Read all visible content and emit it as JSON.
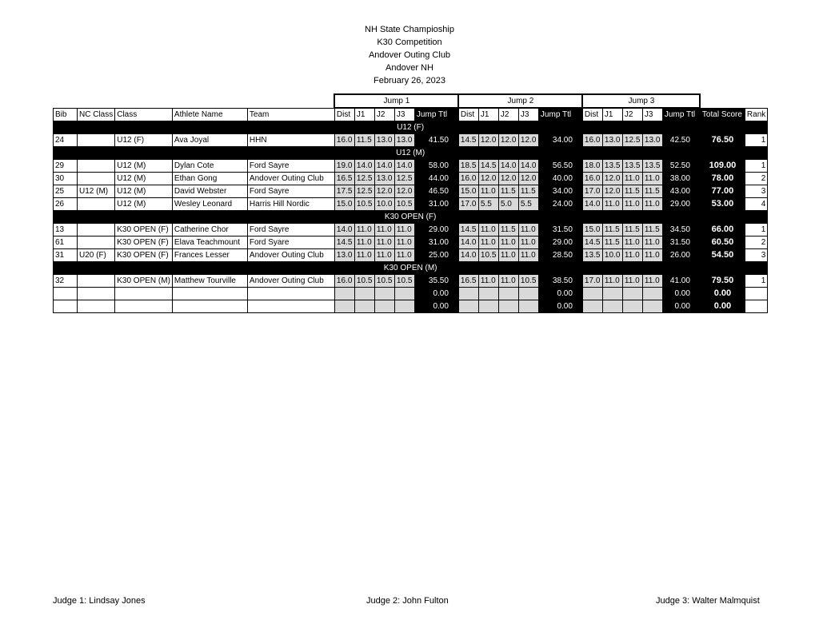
{
  "title": [
    "NH State Champioship",
    "K30 Competition",
    "Andover Outing Club",
    "Andover NH",
    "February 26, 2023"
  ],
  "jumps": [
    "Jump 1",
    "Jump 2",
    "Jump 3"
  ],
  "headers": {
    "bib": "Bib",
    "nc_class": "NC Class",
    "class": "Class",
    "athlete": "Athlete Name",
    "team": "Team",
    "dist": "Dist",
    "j1": "J1",
    "j2": "J2",
    "j3": "J3",
    "jump_ttl": "Jump Ttl",
    "total": "Total Score",
    "rank": "Rank"
  },
  "sections": [
    {
      "label": "U12 (F)",
      "rows": [
        {
          "bib": "24",
          "nc": "",
          "cls": "U12 (F)",
          "name": "Ava Joyal",
          "team": "HHN",
          "jumps": [
            [
              "16.0",
              "11.5",
              "13.0",
              "13.0",
              "41.50"
            ],
            [
              "14.5",
              "12.0",
              "12.0",
              "12.0",
              "34.00"
            ],
            [
              "16.0",
              "13.0",
              "12.5",
              "13.0",
              "42.50"
            ]
          ],
          "total": "76.50",
          "rank": "1"
        }
      ]
    },
    {
      "label": "U12 (M)",
      "rows": [
        {
          "bib": "29",
          "nc": "",
          "cls": "U12 (M)",
          "name": "Dylan Cote",
          "team": "Ford Sayre",
          "jumps": [
            [
              "19.0",
              "14.0",
              "14.0",
              "14.0",
              "58.00"
            ],
            [
              "18.5",
              "14.5",
              "14.0",
              "14.0",
              "56.50"
            ],
            [
              "18.0",
              "13.5",
              "13.5",
              "13.5",
              "52.50"
            ]
          ],
          "total": "109.00",
          "rank": "1"
        },
        {
          "bib": "30",
          "nc": "",
          "cls": "U12 (M)",
          "name": "Ethan Gong",
          "team": "Andover Outing Club",
          "jumps": [
            [
              "16.5",
              "12.5",
              "13.0",
              "12.5",
              "44.00"
            ],
            [
              "16.0",
              "12.0",
              "12.0",
              "12.0",
              "40.00"
            ],
            [
              "16.0",
              "12.0",
              "11.0",
              "11.0",
              "38.00"
            ]
          ],
          "total": "78.00",
          "rank": "2"
        },
        {
          "bib": "25",
          "nc": "U12 (M)",
          "cls": "U12 (M)",
          "name": "David Webster",
          "team": "Ford Sayre",
          "jumps": [
            [
              "17.5",
              "12.5",
              "12.0",
              "12.0",
              "46.50"
            ],
            [
              "15.0",
              "11.0",
              "11.5",
              "11.5",
              "34.00"
            ],
            [
              "17.0",
              "12.0",
              "11.5",
              "11.5",
              "43.00"
            ]
          ],
          "total": "77.00",
          "rank": "3"
        },
        {
          "bib": "26",
          "nc": "",
          "cls": "U12 (M)",
          "name": "Wesley Leonard",
          "team": "Harris Hill Nordic",
          "jumps": [
            [
              "15.0",
              "10.5",
              "10.0",
              "10.5",
              "31.00"
            ],
            [
              "17.0",
              "5.5",
              "5.0",
              "5.5",
              "24.00"
            ],
            [
              "14.0",
              "11.0",
              "11.0",
              "11.0",
              "29.00"
            ]
          ],
          "total": "53.00",
          "rank": "4"
        }
      ]
    },
    {
      "label": "K30 OPEN (F)",
      "rows": [
        {
          "bib": "13",
          "nc": "",
          "cls": "K30 OPEN (F)",
          "name": "Catherine  Chor",
          "team": "Ford Sayre",
          "jumps": [
            [
              "14.0",
              "11.0",
              "11.0",
              "11.0",
              "29.00"
            ],
            [
              "14.5",
              "11.0",
              "11.5",
              "11.0",
              "31.50"
            ],
            [
              "15.0",
              "11.5",
              "11.5",
              "11.5",
              "34.50"
            ]
          ],
          "total": "66.00",
          "rank": "1"
        },
        {
          "bib": "61",
          "nc": "",
          "cls": "K30 OPEN (F)",
          "name": "Elava Teachmount",
          "team": "Ford Syare",
          "jumps": [
            [
              "14.5",
              "11.0",
              "11.0",
              "11.0",
              "31.00"
            ],
            [
              "14.0",
              "11.0",
              "11.0",
              "11.0",
              "29.00"
            ],
            [
              "14.5",
              "11.5",
              "11.0",
              "11.0",
              "31.50"
            ]
          ],
          "total": "60.50",
          "rank": "2"
        },
        {
          "bib": "31",
          "nc": "U20 (F)",
          "cls": "K30 OPEN (F)",
          "name": "Frances Lesser",
          "team": "Andover Outing Club",
          "jumps": [
            [
              "13.0",
              "11.0",
              "11.0",
              "11.0",
              "25.00"
            ],
            [
              "14.0",
              "10.5",
              "11.0",
              "11.0",
              "28.50"
            ],
            [
              "13.5",
              "10.0",
              "11.0",
              "11.0",
              "26.00"
            ]
          ],
          "total": "54.50",
          "rank": "3"
        }
      ]
    },
    {
      "label": "K30 OPEN (M)",
      "rows": [
        {
          "bib": "32",
          "nc": "",
          "cls": "K30 OPEN (M)",
          "name": "Matthew Tourville",
          "team": "Andover Outing Club",
          "jumps": [
            [
              "16.0",
              "10.5",
              "10.5",
              "10.5",
              "35.50"
            ],
            [
              "16.5",
              "11.0",
              "11.0",
              "10.5",
              "38.50"
            ],
            [
              "17.0",
              "11.0",
              "11.0",
              "11.0",
              "41.00"
            ]
          ],
          "total": "79.50",
          "rank": "1"
        },
        {
          "bib": "",
          "nc": "",
          "cls": "",
          "name": "",
          "team": "",
          "jumps": [
            [
              "",
              "",
              "",
              "",
              "0.00"
            ],
            [
              "",
              "",
              "",
              "",
              "0.00"
            ],
            [
              "",
              "",
              "",
              "",
              "0.00"
            ]
          ],
          "total": "0.00",
          "rank": ""
        },
        {
          "bib": "",
          "nc": "",
          "cls": "",
          "name": "",
          "team": "",
          "jumps": [
            [
              "",
              "",
              "",
              "",
              "0.00"
            ],
            [
              "",
              "",
              "",
              "",
              "0.00"
            ],
            [
              "",
              "",
              "",
              "",
              "0.00"
            ]
          ],
          "total": "0.00",
          "rank": ""
        }
      ]
    }
  ],
  "footer": {
    "judge1": "Judge 1: Lindsay Jones",
    "judge2": "Judge 2: John Fulton",
    "judge3": "Judge 3: Walter Malmquist"
  }
}
